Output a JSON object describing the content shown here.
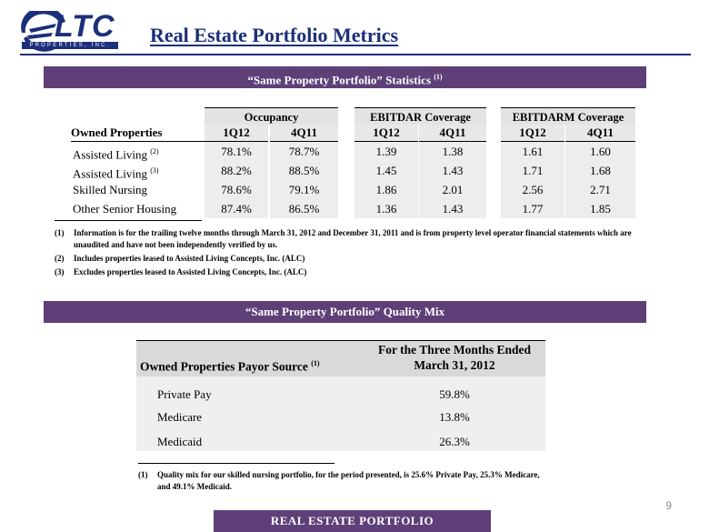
{
  "logo": {
    "letters": "LTC",
    "subtitle": "PROPERTIES, INC."
  },
  "title": "Real Estate Portfolio Metrics",
  "stats_banner": {
    "text": "“Same Property Portfolio” Statistics",
    "ref": "(1)"
  },
  "stats_table": {
    "row_header": "Owned Properties",
    "groups": [
      "Occupancy",
      "EBITDAR Coverage",
      "EBITDARM Coverage"
    ],
    "columns": [
      "1Q12",
      "4Q11",
      "1Q12",
      "4Q11",
      "1Q12",
      "4Q11"
    ],
    "rows": [
      {
        "label": "Assisted Living",
        "ref": "(2)",
        "values": [
          "78.1%",
          "78.7%",
          "1.39",
          "1.38",
          "1.61",
          "1.60"
        ]
      },
      {
        "label": "Assisted Living",
        "ref": "(3)",
        "values": [
          "88.2%",
          "88.5%",
          "1.45",
          "1.43",
          "1.71",
          "1.68"
        ]
      },
      {
        "label": "Skilled Nursing",
        "ref": "",
        "values": [
          "78.6%",
          "79.1%",
          "1.86",
          "2.01",
          "2.56",
          "2.71"
        ]
      },
      {
        "label": "Other Senior Housing",
        "ref": "",
        "values": [
          "87.4%",
          "86.5%",
          "1.36",
          "1.43",
          "1.77",
          "1.85"
        ]
      }
    ]
  },
  "stats_footnotes": [
    {
      "num": "(1)",
      "line1": "Information is for the trailing twelve months through March 31, 2012 and December 31, 2011 and is from property level operator financial statements which are",
      "line2": "unaudited and have not been independently verified by us."
    },
    {
      "num": "(2)",
      "line1": "Includes properties leased to Assisted Living Concepts, Inc. (ALC)",
      "line2": ""
    },
    {
      "num": "(3)",
      "line1": "Excludes properties leased to Assisted Living Concepts, Inc. (ALC)",
      "line2": ""
    }
  ],
  "mix_banner": {
    "text": "“Same Property Portfolio” Quality Mix"
  },
  "mix_table": {
    "row_header": "Owned Properties Payor Source",
    "row_header_ref": "(1)",
    "col_header_line1": "For the Three Months Ended",
    "col_header_line2": "March 31, 2012",
    "rows": [
      {
        "label": "Private Pay",
        "value": "59.8%"
      },
      {
        "label": "Medicare",
        "value": "13.8%"
      },
      {
        "label": "Medicaid",
        "value": "26.3%"
      }
    ]
  },
  "mix_footnote": {
    "num": "(1)",
    "line1": "Quality mix for our skilled nursing portfolio, for the period presented, is 25.6% Private Pay, 25.3% Medicare,",
    "line2": "and 49.1% Medicaid."
  },
  "page_number": "9",
  "footer": "REAL ESTATE PORTFOLIO",
  "colors": {
    "brand_blue": "#1c2f7a",
    "banner_purple": "#5e3f78"
  }
}
